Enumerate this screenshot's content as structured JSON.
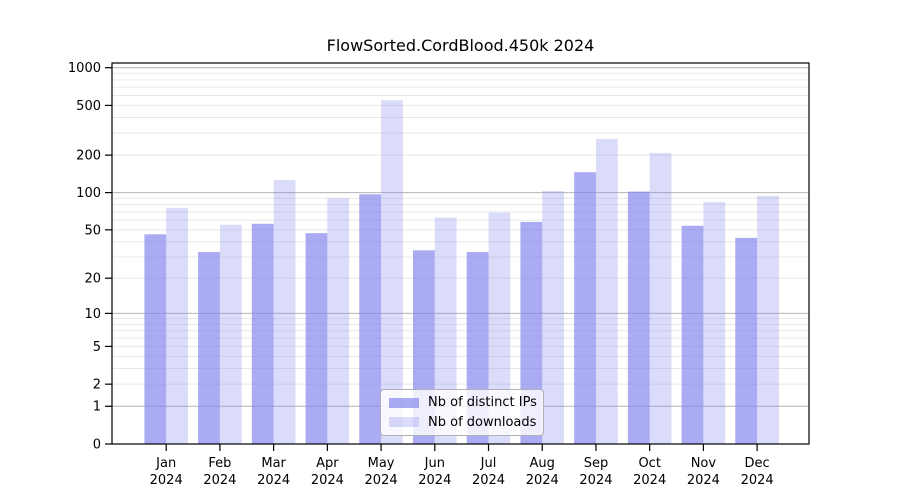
{
  "chart_data": {
    "type": "bar",
    "title": "FlowSorted.CordBlood.450k 2024",
    "xlabel": "",
    "ylabel": "",
    "categories": [
      "Jan",
      "Feb",
      "Mar",
      "Apr",
      "May",
      "Jun",
      "Jul",
      "Aug",
      "Sep",
      "Oct",
      "Nov",
      "Dec"
    ],
    "category_year": "2024",
    "series": [
      {
        "name": "Nb of distinct IPs",
        "color": "#8888ee",
        "opacity": 0.7,
        "values": [
          46,
          33,
          56,
          47,
          97,
          34,
          33,
          58,
          146,
          102,
          54,
          43
        ]
      },
      {
        "name": "Nb of downloads",
        "color": "#8888ee",
        "opacity": 0.3,
        "values": [
          75,
          55,
          126,
          90,
          550,
          63,
          69,
          103,
          270,
          208,
          84,
          94
        ]
      }
    ],
    "yscale": "log1p",
    "yticks": [
      0,
      1,
      2,
      5,
      10,
      20,
      50,
      100,
      200,
      500,
      1000
    ],
    "ylim": [
      0,
      1100
    ],
    "grid": "horizontal-log-minor-and-major",
    "grid_major_values": [
      1,
      10,
      100,
      1000
    ],
    "legend_position": "bottom-center",
    "colors": {
      "axis": "#000000",
      "grid_major": "#b4b4b4",
      "grid_minor": "#e8e8e8",
      "text": "#000000",
      "legend_border": "#b0b0b0"
    }
  }
}
